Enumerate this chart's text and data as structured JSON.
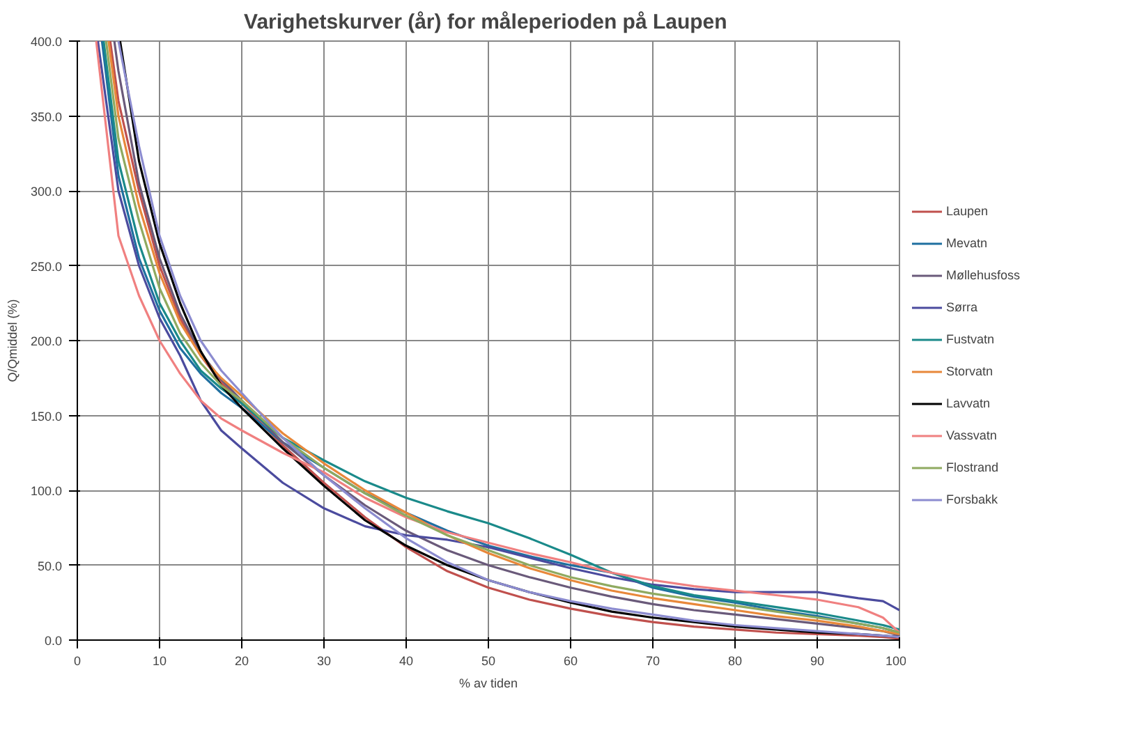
{
  "chart_data": {
    "type": "line",
    "title": "Varighetskurver (år) for måleperioden  på Laupen",
    "xlabel": "% av tiden",
    "ylabel": "Q/Qmiddel (%)",
    "xlim": [
      0,
      100
    ],
    "ylim": [
      0,
      400
    ],
    "xticks": [
      0,
      10,
      20,
      30,
      40,
      50,
      60,
      70,
      80,
      90,
      100
    ],
    "yticks": [
      {
        "value": 0,
        "label": "0.0"
      },
      {
        "value": 50,
        "label": "50.0"
      },
      {
        "value": 100,
        "label": "100.0"
      },
      {
        "value": 150,
        "label": "150.0"
      },
      {
        "value": 200,
        "label": "200.0"
      },
      {
        "value": 250,
        "label": "250.0"
      },
      {
        "value": 300,
        "label": "300.0"
      },
      {
        "value": 350,
        "label": "350.0"
      },
      {
        "value": 400,
        "label": "400.0"
      }
    ],
    "grid": true,
    "legend": "right",
    "marker": "none",
    "line_style": "solid",
    "series": [
      {
        "name": "Laupen",
        "color": "#c0504d",
        "x": [
          4,
          5,
          7.5,
          10,
          12.5,
          15,
          17.5,
          20,
          25,
          30,
          35,
          40,
          45,
          50,
          55,
          60,
          65,
          70,
          75,
          80,
          85,
          90,
          95,
          98,
          100
        ],
        "values": [
          400,
          360,
          300,
          250,
          215,
          190,
          172,
          158,
          130,
          105,
          82,
          62,
          46,
          35,
          27,
          21,
          16,
          12,
          9,
          7,
          5,
          4,
          3,
          2,
          1
        ]
      },
      {
        "name": "Mevatn",
        "color": "#1f6fa0",
        "x": [
          3,
          5,
          7.5,
          10,
          12.5,
          15,
          17.5,
          20,
          25,
          30,
          35,
          40,
          45,
          50,
          55,
          60,
          65,
          70,
          75,
          80,
          85,
          90,
          95,
          98,
          100
        ],
        "values": [
          400,
          310,
          255,
          220,
          195,
          178,
          165,
          155,
          132,
          115,
          98,
          85,
          73,
          63,
          56,
          50,
          45,
          35,
          29,
          25,
          20,
          16,
          11,
          8,
          5
        ]
      },
      {
        "name": "Møllehusfoss",
        "color": "#6a5a7a",
        "x": [
          4.5,
          5,
          7.5,
          10,
          12.5,
          15,
          17.5,
          20,
          25,
          30,
          35,
          40,
          45,
          50,
          55,
          60,
          65,
          70,
          75,
          80,
          85,
          90,
          95,
          98,
          100
        ],
        "values": [
          400,
          380,
          305,
          255,
          218,
          192,
          174,
          160,
          132,
          110,
          90,
          73,
          60,
          50,
          42,
          35,
          29,
          24,
          20,
          17,
          14,
          11,
          8,
          6,
          3
        ]
      },
      {
        "name": "Sørra",
        "color": "#4b4b9e",
        "x": [
          2.5,
          5,
          7.5,
          10,
          12.5,
          15,
          17.5,
          20,
          25,
          30,
          35,
          40,
          45,
          50,
          55,
          60,
          65,
          70,
          75,
          80,
          85,
          90,
          95,
          98,
          100
        ],
        "values": [
          400,
          300,
          250,
          215,
          190,
          160,
          140,
          128,
          105,
          88,
          76,
          70,
          67,
          62,
          55,
          48,
          42,
          37,
          34,
          32,
          32,
          32,
          28,
          26,
          20
        ]
      },
      {
        "name": "Fustvatn",
        "color": "#1a8a8a",
        "x": [
          3.2,
          5,
          7.5,
          10,
          12.5,
          15,
          17.5,
          20,
          25,
          30,
          35,
          40,
          45,
          50,
          55,
          60,
          65,
          70,
          75,
          80,
          85,
          90,
          95,
          98,
          100
        ],
        "values": [
          400,
          320,
          265,
          225,
          200,
          180,
          168,
          158,
          135,
          120,
          106,
          95,
          86,
          78,
          68,
          57,
          45,
          36,
          30,
          26,
          22,
          18,
          13,
          10,
          7
        ]
      },
      {
        "name": "Storvatn",
        "color": "#e8883a",
        "x": [
          3.8,
          5,
          7.5,
          10,
          12.5,
          15,
          17.5,
          20,
          25,
          30,
          35,
          40,
          45,
          50,
          55,
          60,
          65,
          70,
          75,
          80,
          85,
          90,
          95,
          98,
          100
        ],
        "values": [
          400,
          350,
          290,
          245,
          212,
          190,
          175,
          163,
          138,
          118,
          100,
          85,
          70,
          58,
          48,
          40,
          33,
          28,
          24,
          20,
          16,
          13,
          9,
          6,
          4
        ]
      },
      {
        "name": "Lavvatn",
        "color": "#000000",
        "x": [
          5.2,
          7.5,
          10,
          12.5,
          15,
          17.5,
          20,
          25,
          30,
          35,
          40,
          45,
          50,
          55,
          60,
          65,
          70,
          75,
          80,
          85,
          90,
          95,
          98,
          100
        ],
        "values": [
          400,
          320,
          265,
          225,
          193,
          170,
          155,
          128,
          103,
          80,
          63,
          50,
          40,
          32,
          25,
          19,
          15,
          12,
          9,
          7,
          5,
          4,
          3,
          2
        ]
      },
      {
        "name": "Vassvatn",
        "color": "#f08080",
        "x": [
          2.3,
          5,
          7.5,
          10,
          12.5,
          15,
          17.5,
          20,
          25,
          30,
          35,
          40,
          45,
          50,
          55,
          60,
          65,
          70,
          75,
          80,
          85,
          90,
          95,
          98,
          100
        ],
        "values": [
          400,
          270,
          230,
          200,
          178,
          160,
          148,
          140,
          125,
          112,
          95,
          82,
          72,
          65,
          58,
          52,
          45,
          40,
          36,
          33,
          30,
          27,
          22,
          15,
          5
        ]
      },
      {
        "name": "Flostrand",
        "color": "#8faa60",
        "x": [
          3.5,
          5,
          7.5,
          10,
          12.5,
          15,
          17.5,
          20,
          25,
          30,
          35,
          40,
          45,
          50,
          55,
          60,
          65,
          70,
          75,
          80,
          85,
          90,
          95,
          98,
          100
        ],
        "values": [
          400,
          335,
          280,
          235,
          205,
          185,
          170,
          160,
          135,
          115,
          98,
          83,
          70,
          60,
          50,
          42,
          36,
          31,
          27,
          23,
          19,
          15,
          11,
          8,
          5
        ]
      },
      {
        "name": "Forsbakk",
        "color": "#8c8cd0",
        "x": [
          5,
          7.5,
          10,
          12.5,
          15,
          17.5,
          20,
          25,
          30,
          35,
          40,
          45,
          50,
          55,
          60,
          65,
          70,
          75,
          80,
          85,
          90,
          95,
          98,
          100
        ],
        "values": [
          400,
          330,
          270,
          230,
          200,
          180,
          165,
          135,
          110,
          88,
          68,
          52,
          40,
          32,
          26,
          21,
          17,
          13,
          10,
          8,
          6,
          4,
          3,
          2
        ]
      }
    ]
  }
}
